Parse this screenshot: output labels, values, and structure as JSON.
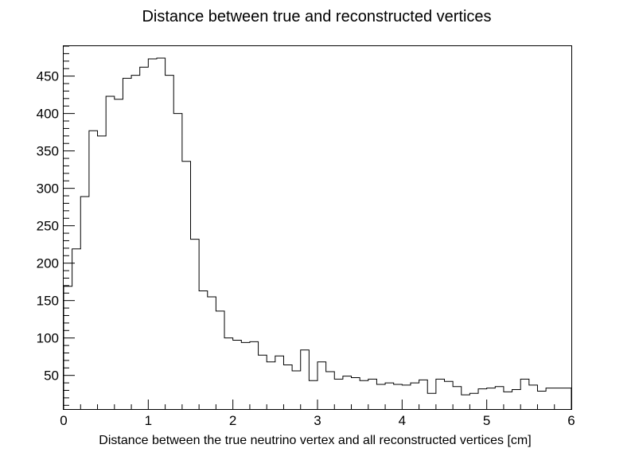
{
  "chart_data": {
    "type": "histogram",
    "title": "Distance between true and reconstructed vertices",
    "xlabel": "Distance between the true neutrino vertex and all reconstructed vertices [cm]",
    "ylabel": "",
    "xlim": [
      0,
      6
    ],
    "ylim": [
      5,
      490
    ],
    "x_ticks": [
      "0",
      "1",
      "2",
      "3",
      "4",
      "5",
      "6"
    ],
    "y_ticks": [
      "50",
      "100",
      "150",
      "200",
      "250",
      "300",
      "350",
      "400",
      "450"
    ],
    "bin_edges_start": 0,
    "bin_width": 0.1,
    "values": [
      169,
      219,
      289,
      377,
      370,
      423,
      419,
      447,
      451,
      462,
      473,
      474,
      451,
      400,
      336,
      232,
      163,
      155,
      136,
      100,
      97,
      94,
      95,
      77,
      68,
      76,
      64,
      56,
      84,
      43,
      68,
      55,
      45,
      49,
      47,
      43,
      45,
      38,
      40,
      38,
      37,
      40,
      44,
      26,
      45,
      42,
      35,
      24,
      26,
      32,
      33,
      35,
      28,
      31,
      45,
      37,
      29,
      33,
      33,
      33
    ],
    "line_color": "#000000",
    "grid": false,
    "legend": "none"
  }
}
